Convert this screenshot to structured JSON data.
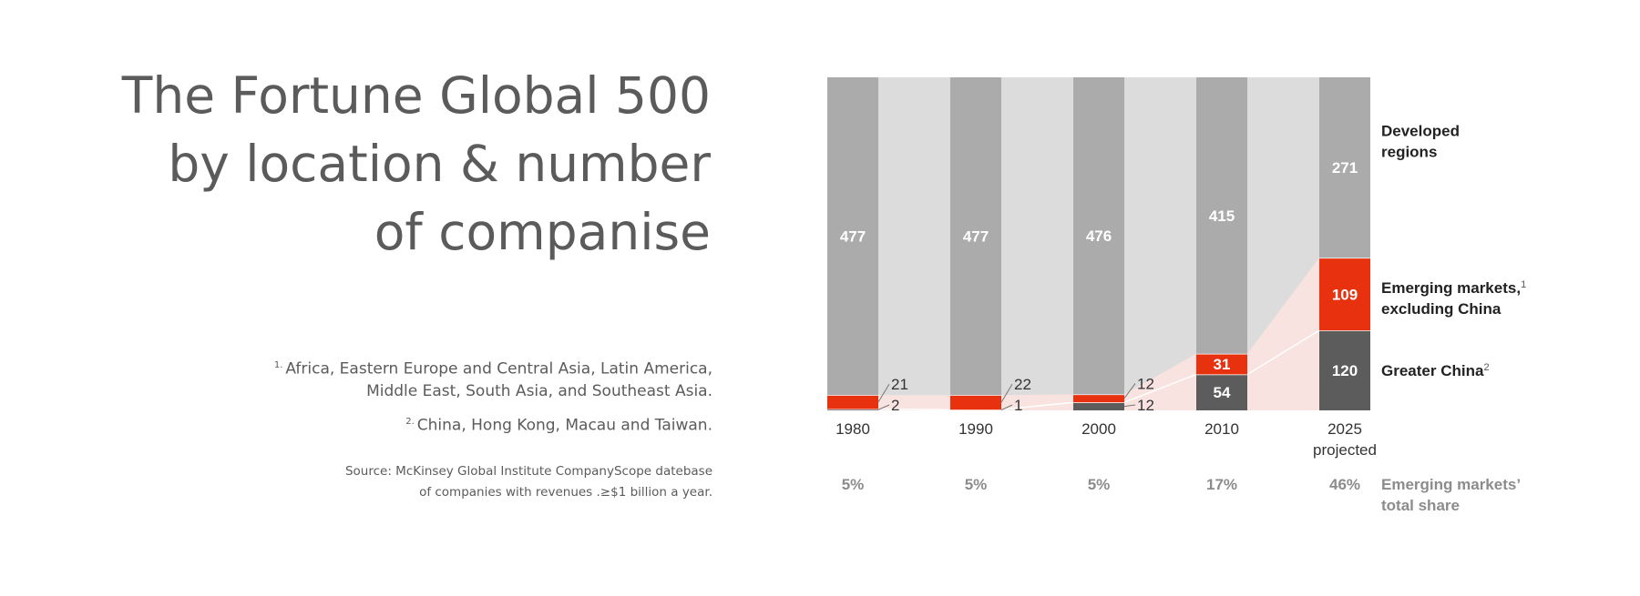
{
  "title": {
    "lines": [
      "The Fortune Global 500",
      "by location & number",
      "of companise"
    ]
  },
  "footnotes": [
    {
      "marker": "1.",
      "lines": [
        "Africa, Eastern Europe and Central Asia, Latin America,",
        "Middle East, South Asia, and Southeast Asia."
      ]
    },
    {
      "marker": "2.",
      "lines": [
        "China, Hong Kong, Macau and Taiwan."
      ]
    }
  ],
  "source": {
    "lines": [
      "Source: McKinsey Global Institute CompanyScope datebase",
      "of companies with revenues .≥$1 billion a year."
    ]
  },
  "chart_data": {
    "type": "bar",
    "stacked": true,
    "categories": [
      "1980",
      "1990",
      "2000",
      "2010",
      "2025\nprojected"
    ],
    "series": [
      {
        "name": "Greater China",
        "marker": "2",
        "values": [
          2,
          1,
          12,
          54,
          120
        ],
        "color": "#5c5c5c"
      },
      {
        "name": "Emerging markets, excluding China",
        "marker": "1",
        "values": [
          21,
          22,
          12,
          31,
          109
        ],
        "color": "#e8320f"
      },
      {
        "name": "Developed regions",
        "marker": "",
        "values": [
          477,
          477,
          476,
          415,
          271
        ],
        "color": "#ababab"
      }
    ],
    "share_label": "Emerging markets’ total share",
    "shares": [
      "5%",
      "5%",
      "5%",
      "17%",
      "46%"
    ],
    "legend_placement": "right",
    "grid": false,
    "ylim": [
      0,
      500
    ]
  }
}
